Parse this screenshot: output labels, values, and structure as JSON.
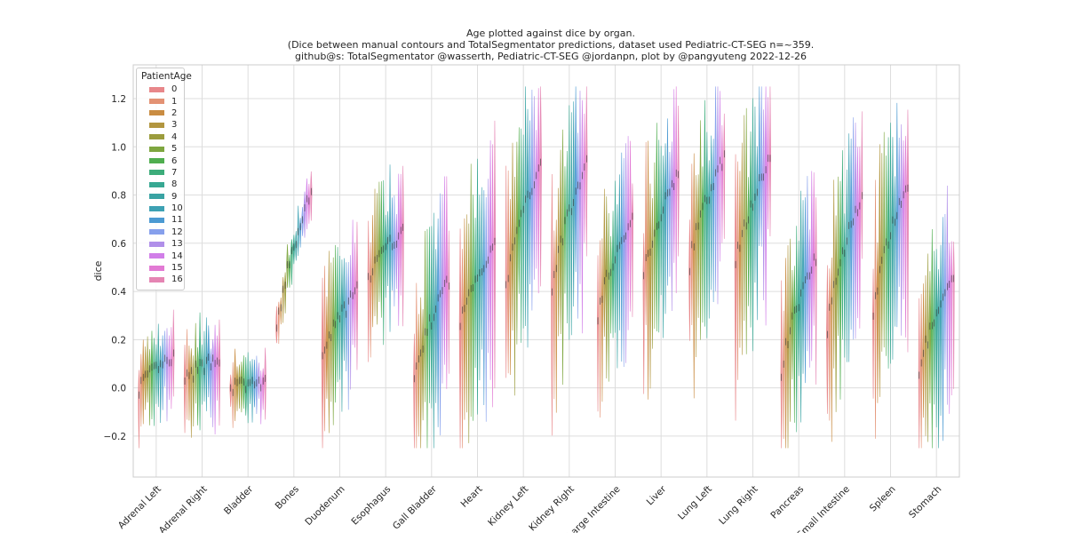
{
  "chart_data": {
    "type": "violin",
    "title_lines": [
      "Age plotted against dice by organ.",
      "(Dice between manual contours and TotalSegmentator predictions, dataset used Pediatric-CT-SEG n=~359.",
      "github@s: TotalSegmentator @wasserth, Pediatric-CT-SEG @jordanpn, plot by @pangyuteng 2022-12-26"
    ],
    "xlabel": "",
    "ylabel": "dice",
    "ylim": [
      -0.37,
      1.34
    ],
    "yticks": [
      -0.2,
      0.0,
      0.2,
      0.4,
      0.6,
      0.8,
      1.0,
      1.2
    ],
    "ytick_labels": [
      "−0.2",
      "0.0",
      "0.2",
      "0.4",
      "0.6",
      "0.8",
      "1.0",
      "1.2"
    ],
    "grid": true,
    "legend": {
      "title": "PatientAge",
      "placement": "top-left",
      "entries": [
        "0",
        "1",
        "2",
        "3",
        "4",
        "5",
        "6",
        "7",
        "8",
        "9",
        "10",
        "11",
        "12",
        "13",
        "14",
        "15",
        "16"
      ]
    },
    "hue_colors": [
      "#e8878a",
      "#e39274",
      "#c98c42",
      "#b2963f",
      "#9b9c3d",
      "#7ea63f",
      "#4fae4f",
      "#3cac7a",
      "#37a892",
      "#39a3a3",
      "#3da1b3",
      "#4c9ad2",
      "#86a0ec",
      "#b08fe9",
      "#d17ee8",
      "#e27ad4",
      "#e585b3"
    ],
    "categories": [
      "Adrenal Left",
      "Adrenal Right",
      "Bladder",
      "Bones",
      "Duodenum",
      "Esophagus",
      "Gall Bladder",
      "Heart",
      "Kidney Left",
      "Kidney Right",
      "Large Intestine",
      "Liver",
      "Lung Left",
      "Lung Right",
      "Pancreas",
      "Small Intestine",
      "Spleen",
      "Stomach"
    ],
    "series_medians": [
      {
        "name": "Adrenal Left",
        "start": 0.0,
        "end": 0.12,
        "spread": 0.22
      },
      {
        "name": "Adrenal Right",
        "start": 0.02,
        "end": 0.13,
        "spread": 0.25
      },
      {
        "name": "Bladder",
        "start": 0.0,
        "end": 0.02,
        "spread": 0.15
      },
      {
        "name": "Bones",
        "start": 0.22,
        "end": 0.81,
        "spread": 0.12
      },
      {
        "name": "Duodenum",
        "start": 0.12,
        "end": 0.4,
        "spread": 0.4
      },
      {
        "name": "Esophagus",
        "start": 0.45,
        "end": 0.65,
        "spread": 0.35
      },
      {
        "name": "Gall Bladder",
        "start": 0.02,
        "end": 0.45,
        "spread": 0.55
      },
      {
        "name": "Heart",
        "start": 0.25,
        "end": 0.6,
        "spread": 0.6
      },
      {
        "name": "Kidney Left",
        "start": 0.4,
        "end": 0.94,
        "spread": 0.55
      },
      {
        "name": "Kidney Right",
        "start": 0.4,
        "end": 0.93,
        "spread": 0.55
      },
      {
        "name": "Large Intestine",
        "start": 0.3,
        "end": 0.7,
        "spread": 0.45
      },
      {
        "name": "Liver",
        "start": 0.45,
        "end": 0.9,
        "spread": 0.55
      },
      {
        "name": "Lung Left",
        "start": 0.5,
        "end": 0.96,
        "spread": 0.55
      },
      {
        "name": "Lung Right",
        "start": 0.5,
        "end": 0.95,
        "spread": 0.55
      },
      {
        "name": "Pancreas",
        "start": 0.05,
        "end": 0.55,
        "spread": 0.5
      },
      {
        "name": "Small Intestine",
        "start": 0.25,
        "end": 0.8,
        "spread": 0.5
      },
      {
        "name": "Spleen",
        "start": 0.3,
        "end": 0.85,
        "spread": 0.6
      },
      {
        "name": "Stomach",
        "start": 0.05,
        "end": 0.45,
        "spread": 0.5
      }
    ]
  }
}
